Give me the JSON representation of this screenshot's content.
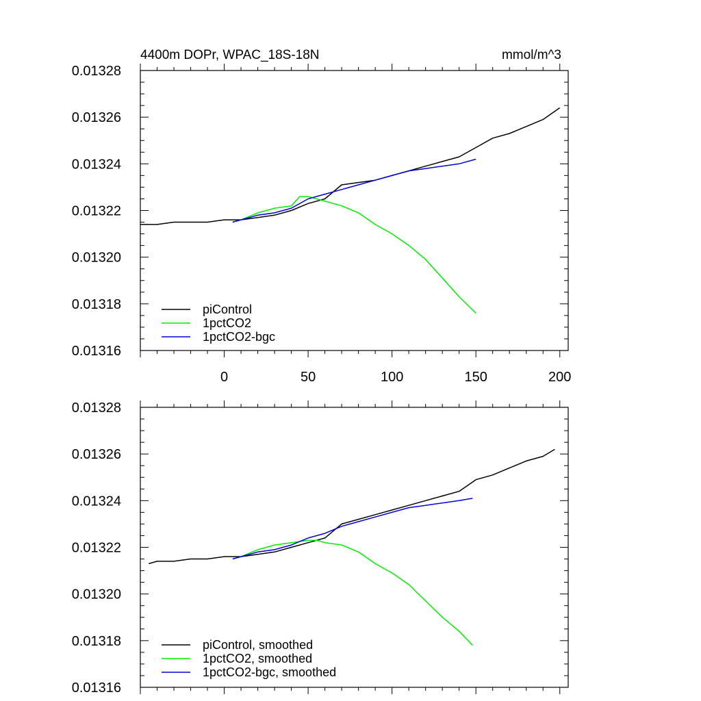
{
  "chart_data": [
    {
      "type": "line",
      "title": "4400m DOPr, WPAC_18S-18N",
      "units_label": "mmol/m^3",
      "xlabel": "",
      "ylabel": "",
      "xlim": [
        -50,
        205
      ],
      "ylim": [
        0.01316,
        0.01328
      ],
      "x_ticks": [
        0,
        50,
        100,
        150,
        200
      ],
      "x_tick_labels": [
        "0",
        "50",
        "100",
        "150",
        "200"
      ],
      "y_ticks": [
        0.01316,
        0.01318,
        0.0132,
        0.01322,
        0.01324,
        0.01326,
        0.01328
      ],
      "y_tick_labels": [
        "0.01316",
        "0.01318",
        "0.01320",
        "0.01322",
        "0.01324",
        "0.01326",
        "0.01328"
      ],
      "grid": false,
      "legend_position": "bottom-left",
      "series": [
        {
          "name": "piControl",
          "color": "#000000",
          "x": [
            -50,
            -40,
            -30,
            -20,
            -10,
            0,
            10,
            20,
            30,
            40,
            50,
            60,
            70,
            80,
            90,
            100,
            110,
            120,
            130,
            140,
            150,
            160,
            170,
            180,
            190,
            200
          ],
          "y": [
            0.013214,
            0.013214,
            0.013215,
            0.013215,
            0.013215,
            0.013216,
            0.013216,
            0.013217,
            0.013218,
            0.01322,
            0.013223,
            0.013225,
            0.013231,
            0.013232,
            0.013233,
            0.013235,
            0.013237,
            0.013239,
            0.013241,
            0.013243,
            0.013247,
            0.013251,
            0.013253,
            0.013256,
            0.013259,
            0.013264
          ]
        },
        {
          "name": "1pctCO2",
          "color": "#00ee00",
          "x": [
            5,
            10,
            20,
            30,
            40,
            45,
            50,
            55,
            60,
            70,
            80,
            90,
            100,
            110,
            120,
            130,
            140,
            150
          ],
          "y": [
            0.013215,
            0.013216,
            0.013219,
            0.013221,
            0.013222,
            0.013226,
            0.013226,
            0.013225,
            0.013224,
            0.013222,
            0.013219,
            0.013214,
            0.01321,
            0.013205,
            0.013199,
            0.013191,
            0.013183,
            0.013176
          ]
        },
        {
          "name": "1pctCO2-bgc",
          "color": "#0000dd",
          "x": [
            5,
            10,
            20,
            30,
            40,
            50,
            60,
            70,
            80,
            90,
            100,
            110,
            120,
            130,
            140,
            150
          ],
          "y": [
            0.013215,
            0.013216,
            0.013218,
            0.013219,
            0.013221,
            0.013225,
            0.013227,
            0.013229,
            0.013231,
            0.013233,
            0.013235,
            0.013237,
            0.013238,
            0.013239,
            0.01324,
            0.013242
          ]
        }
      ]
    },
    {
      "type": "line",
      "title": "",
      "xlabel": "",
      "ylabel": "",
      "xlim": [
        -50,
        205
      ],
      "ylim": [
        0.01316,
        0.01328
      ],
      "x_ticks": [
        0,
        50,
        100,
        150,
        200
      ],
      "y_ticks": [
        0.01316,
        0.01318,
        0.0132,
        0.01322,
        0.01324,
        0.01326,
        0.01328
      ],
      "y_tick_labels": [
        "0.01316",
        "0.01318",
        "0.01320",
        "0.01322",
        "0.01324",
        "0.01326",
        "0.01328"
      ],
      "grid": false,
      "legend_position": "bottom-left",
      "series": [
        {
          "name": "piControl, smoothed",
          "color": "#000000",
          "x": [
            -45,
            -40,
            -30,
            -20,
            -10,
            0,
            10,
            20,
            30,
            40,
            50,
            55,
            60,
            70,
            80,
            90,
            100,
            110,
            120,
            130,
            140,
            150,
            160,
            170,
            180,
            190,
            197
          ],
          "y": [
            0.013213,
            0.013214,
            0.013214,
            0.013215,
            0.013215,
            0.013216,
            0.013216,
            0.013217,
            0.013218,
            0.01322,
            0.013222,
            0.013223,
            0.013224,
            0.01323,
            0.013232,
            0.013234,
            0.013236,
            0.013238,
            0.01324,
            0.013242,
            0.013244,
            0.013249,
            0.013251,
            0.013254,
            0.013257,
            0.013259,
            0.013262
          ]
        },
        {
          "name": "1pctCO2, smoothed",
          "color": "#00ee00",
          "x": [
            5,
            10,
            20,
            30,
            40,
            50,
            55,
            60,
            70,
            80,
            90,
            100,
            110,
            120,
            130,
            140,
            148
          ],
          "y": [
            0.013215,
            0.013216,
            0.013219,
            0.013221,
            0.013222,
            0.013223,
            0.013223,
            0.013222,
            0.013221,
            0.013218,
            0.013213,
            0.013209,
            0.013204,
            0.013197,
            0.01319,
            0.013184,
            0.013178
          ]
        },
        {
          "name": "1pctCO2-bgc, smoothed",
          "color": "#0000dd",
          "x": [
            5,
            10,
            20,
            30,
            40,
            50,
            60,
            70,
            80,
            90,
            100,
            110,
            120,
            130,
            140,
            148
          ],
          "y": [
            0.013215,
            0.013216,
            0.013218,
            0.013219,
            0.013221,
            0.013224,
            0.013226,
            0.013229,
            0.013231,
            0.013233,
            0.013235,
            0.013237,
            0.013238,
            0.013239,
            0.01324,
            0.013241
          ]
        }
      ]
    }
  ]
}
